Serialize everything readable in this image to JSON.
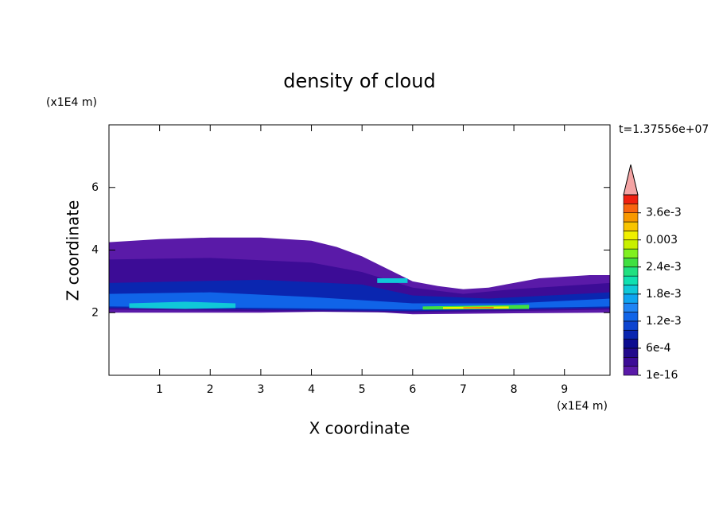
{
  "chart_data": {
    "type": "contour",
    "title": "density of cloud",
    "x_label": "X coordinate",
    "y_label": "Z coordinate",
    "x_unit": "(x1E4 m)",
    "y_unit": "(x1E4 m)",
    "time_label": "t=1.37556e+07",
    "xlim": [
      0,
      9.9
    ],
    "ylim": [
      0,
      8
    ],
    "xticks": [
      1,
      2,
      3,
      4,
      5,
      6,
      7,
      8,
      9
    ],
    "yticks": [
      2,
      4,
      6
    ],
    "colorbar": {
      "levels": [
        1e-16,
        0.0002,
        0.0004,
        0.0006,
        0.0008,
        0.001,
        0.0012,
        0.0014,
        0.0016,
        0.0018,
        0.002,
        0.0022,
        0.0024,
        0.0026,
        0.0028,
        0.003,
        0.0032,
        0.0034,
        0.0036,
        0.0038,
        0.004
      ],
      "colors": [
        "#5a1aa8",
        "#3c0c96",
        "#220a8c",
        "#0c0c90",
        "#0a26b0",
        "#0c44d0",
        "#1064e8",
        "#2084f4",
        "#10a4f0",
        "#10c8d8",
        "#10e0b0",
        "#20e080",
        "#40e040",
        "#80f020",
        "#c8f000",
        "#f0f000",
        "#f8c400",
        "#f89800",
        "#f86410",
        "#f02010"
      ],
      "extend_color": "#f4a4a4",
      "ticks": [
        1e-16,
        {
          "value": 0.0006,
          "label": "6e-4"
        },
        {
          "value": 0.0012,
          "label": "1.2e-3"
        },
        {
          "value": 0.0018,
          "label": "1.8e-3"
        },
        {
          "value": 0.0024,
          "label": "2.4e-3"
        },
        0.003,
        {
          "value": 0.0036,
          "label": "3.6e-3"
        }
      ]
    }
  }
}
